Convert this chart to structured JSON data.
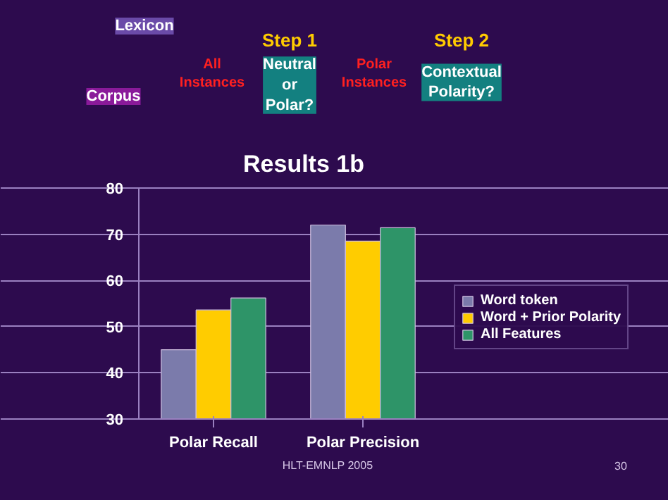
{
  "chart_data": {
    "type": "bar",
    "title": "Results 1b",
    "categories": [
      "Polar Recall",
      "Polar Precision"
    ],
    "series": [
      {
        "name": "Word token",
        "color": "#7b7bab",
        "values": [
          45,
          72
        ]
      },
      {
        "name": "Word + Prior Polarity",
        "color": "#ffcc00",
        "values": [
          53.6,
          68.5
        ]
      },
      {
        "name": "All Features",
        "color": "#2e9468",
        "values": [
          56.2,
          71.4
        ]
      }
    ],
    "ylim": [
      30,
      80
    ],
    "yticks": [
      30,
      40,
      50,
      60,
      70,
      80
    ],
    "grid": "y",
    "legend": "right",
    "annotations": [
      "Lexicon",
      "Corpus",
      "All\nInstances",
      "Step 1",
      "Neutral\nor\nPolar?",
      "Polar\nInstances",
      "Step 2",
      "Contextual\nPolarity?",
      "HLT-EMNLP 2005",
      "30"
    ]
  }
}
